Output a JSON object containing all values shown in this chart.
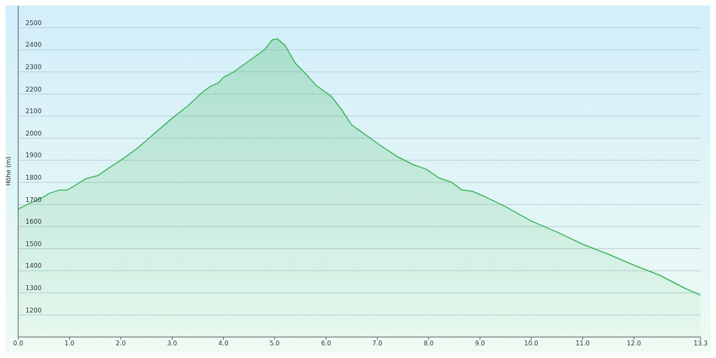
{
  "chart_data": {
    "type": "area",
    "ylabel": "Höhe (m)",
    "x": [
      0,
      0.5,
      0.6,
      0.8,
      0.95,
      1.1,
      1.3,
      1.45,
      1.55,
      1.8,
      2.0,
      2.3,
      2.5,
      2.7,
      3.0,
      3.3,
      3.6,
      3.75,
      3.9,
      4.0,
      4.2,
      4.5,
      4.8,
      4.95,
      5.05,
      5.2,
      5.4,
      5.65,
      5.8,
      6.1,
      6.3,
      6.5,
      6.8,
      7.1,
      7.4,
      7.7,
      7.95,
      8.2,
      8.45,
      8.65,
      8.85,
      9.1,
      9.5,
      10.0,
      10.5,
      11.0,
      11.5,
      12.0,
      12.5,
      13.0,
      13.3
    ],
    "series": [
      {
        "color": "#3cb35a",
        "values": [
          1680,
          1735,
          1750,
          1765,
          1765,
          1785,
          1815,
          1825,
          1830,
          1870,
          1900,
          1950,
          1990,
          2030,
          2090,
          2145,
          2210,
          2235,
          2250,
          2275,
          2300,
          2350,
          2400,
          2445,
          2450,
          2420,
          2340,
          2280,
          2240,
          2190,
          2130,
          2060,
          2010,
          1960,
          1915,
          1880,
          1860,
          1820,
          1800,
          1765,
          1760,
          1735,
          1690,
          1625,
          1575,
          1520,
          1475,
          1425,
          1380,
          1320,
          1290
        ]
      }
    ],
    "xlim": [
      0,
      13.3
    ],
    "xticks": [
      {
        "value": 0,
        "label": "0.0"
      },
      {
        "value": 1,
        "label": "1.0"
      },
      {
        "value": 2,
        "label": "2.0"
      },
      {
        "value": 3,
        "label": "3.0"
      },
      {
        "value": 4,
        "label": "4.0"
      },
      {
        "value": 5,
        "label": "5.0"
      },
      {
        "value": 6,
        "label": "6.0"
      },
      {
        "value": 7,
        "label": "7.0"
      },
      {
        "value": 8,
        "label": "8.0"
      },
      {
        "value": 9,
        "label": "9.0"
      },
      {
        "value": 10,
        "label": "10.0"
      },
      {
        "value": 11,
        "label": "11.0"
      },
      {
        "value": 12,
        "label": "12.0"
      },
      13.3
    ],
    "ylim": [
      1100,
      2600
    ],
    "yticks": [
      1200,
      1300,
      1400,
      1500,
      1600,
      1700,
      1800,
      1900,
      2000,
      2100,
      2200,
      2300,
      2400,
      2500
    ],
    "grid": "y",
    "marker": "none",
    "line_style": "solid",
    "legend": false
  }
}
